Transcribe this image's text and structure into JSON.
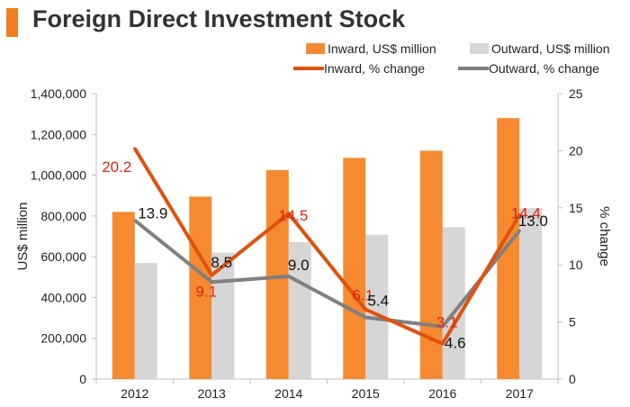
{
  "title": "Foreign Direct Investment Stock",
  "colors": {
    "inward_bar": "#f58a30",
    "outward_bar": "#d6d6d6",
    "inward_line": "#e0510d",
    "outward_line": "#808080",
    "inward_label": "#e0240f",
    "outward_label": "#111111",
    "title_accent": "#f07f1e"
  },
  "chart_data": {
    "type": "bar",
    "title": "Foreign Direct Investment Stock",
    "categories": [
      "2012",
      "2013",
      "2014",
      "2015",
      "2016",
      "2017"
    ],
    "ylabel": "US$ million",
    "y2label": "% change",
    "ylim": [
      0,
      1400000
    ],
    "y2lim": [
      0,
      25
    ],
    "yticks": [
      "0",
      "200,000",
      "400,000",
      "600,000",
      "800,000",
      "1,000,000",
      "1,200,000",
      "1,400,000"
    ],
    "y2ticks": [
      "0",
      "5",
      "10",
      "15",
      "20",
      "25"
    ],
    "legend_position": "top-right",
    "series": [
      {
        "name": "Inward, US$ million",
        "kind": "bar",
        "axis": "left",
        "values": [
          820000,
          895000,
          1025000,
          1085000,
          1120000,
          1280000
        ]
      },
      {
        "name": "Outward, US$ million",
        "kind": "bar",
        "axis": "left",
        "values": [
          570000,
          620000,
          672000,
          708000,
          745000,
          838000
        ]
      },
      {
        "name": "Inward, % change",
        "kind": "line",
        "axis": "right",
        "values": [
          20.2,
          9.1,
          14.5,
          6.1,
          3.1,
          14.4
        ],
        "labels": [
          "20.2",
          "9.1",
          "14.5",
          "6.1",
          "3.1",
          "14.4"
        ]
      },
      {
        "name": "Outward, % change",
        "kind": "line",
        "axis": "right",
        "values": [
          13.9,
          8.5,
          9.0,
          5.4,
          4.6,
          13.0
        ],
        "labels": [
          "13.9",
          "8.5",
          "9.0",
          "5.4",
          "4.6",
          "13.0"
        ]
      }
    ]
  }
}
